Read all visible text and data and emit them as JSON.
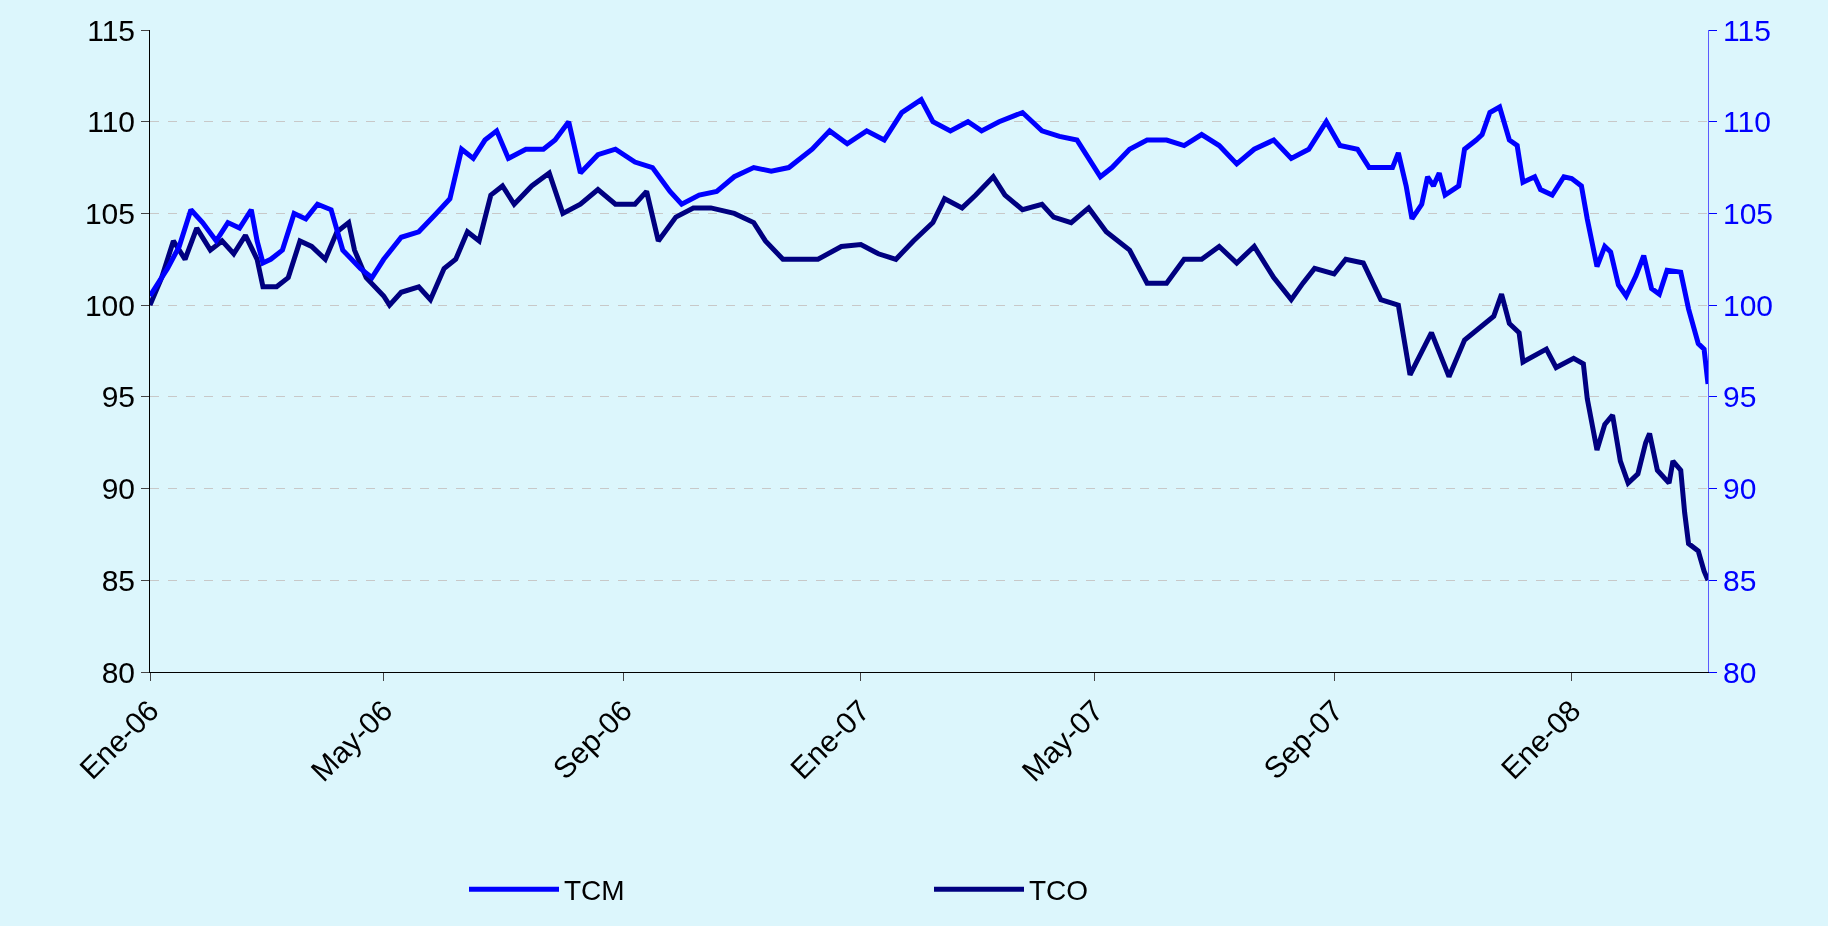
{
  "chart_data": {
    "type": "line",
    "series": [
      {
        "name": "TCM",
        "color": "#0000ff",
        "axis": "y2",
        "x": [
          "2006-01-01",
          "2006-01-10",
          "2006-01-16",
          "2006-01-22",
          "2006-01-28",
          "2006-02-04",
          "2006-02-10",
          "2006-02-16",
          "2006-02-22",
          "2006-02-25",
          "2006-02-28",
          "2006-03-04",
          "2006-03-10",
          "2006-03-16",
          "2006-03-22",
          "2006-03-28",
          "2006-04-04",
          "2006-04-10",
          "2006-04-19",
          "2006-04-25",
          "2006-05-01",
          "2006-05-10",
          "2006-05-19",
          "2006-05-28",
          "2006-06-04",
          "2006-06-10",
          "2006-06-16",
          "2006-06-22",
          "2006-06-28",
          "2006-07-04",
          "2006-07-13",
          "2006-07-22",
          "2006-07-28",
          "2006-08-04",
          "2006-08-10",
          "2006-08-19",
          "2006-08-28",
          "2006-09-07",
          "2006-09-16",
          "2006-09-25",
          "2006-10-01",
          "2006-10-10",
          "2006-10-19",
          "2006-10-28",
          "2006-11-07",
          "2006-11-16",
          "2006-11-25",
          "2006-12-07",
          "2006-12-16",
          "2006-12-25",
          "2007-01-04",
          "2007-01-13",
          "2007-01-22",
          "2007-02-01",
          "2007-02-07",
          "2007-02-16",
          "2007-02-25",
          "2007-03-04",
          "2007-03-13",
          "2007-03-25",
          "2007-04-04",
          "2007-04-13",
          "2007-04-22",
          "2007-05-04",
          "2007-05-10",
          "2007-05-19",
          "2007-05-28",
          "2007-06-07",
          "2007-06-16",
          "2007-06-25",
          "2007-07-04",
          "2007-07-13",
          "2007-07-22",
          "2007-08-01",
          "2007-08-10",
          "2007-08-19",
          "2007-08-28",
          "2007-09-04",
          "2007-09-13",
          "2007-09-19",
          "2007-10-01",
          "2007-10-04",
          "2007-10-08",
          "2007-10-11",
          "2007-10-16",
          "2007-10-19",
          "2007-10-22",
          "2007-10-25",
          "2007-10-28",
          "2007-11-04",
          "2007-11-07",
          "2007-11-13",
          "2007-11-16",
          "2007-11-20",
          "2007-11-25",
          "2007-11-30",
          "2007-12-04",
          "2007-12-07",
          "2007-12-13",
          "2007-12-16",
          "2007-12-22",
          "2007-12-28",
          "2008-01-01",
          "2008-01-06",
          "2008-01-09",
          "2008-01-14",
          "2008-01-18",
          "2008-01-21",
          "2008-01-25",
          "2008-01-29",
          "2008-02-03",
          "2008-02-07",
          "2008-02-11",
          "2008-02-15",
          "2008-02-19",
          "2008-02-26",
          "2008-03-01",
          "2008-03-06",
          "2008-03-09",
          "2008-03-11"
        ],
        "values": [
          100.5,
          102,
          103.2,
          105.2,
          104.5,
          103.5,
          104.5,
          104.2,
          105.2,
          103.5,
          102.3,
          102.5,
          103,
          105,
          104.7,
          105.5,
          105.2,
          103,
          102,
          101.5,
          102.5,
          103.7,
          104,
          105,
          105.8,
          108.5,
          108,
          109,
          109.5,
          108,
          108.5,
          108.5,
          109,
          110,
          107.2,
          108.2,
          108.5,
          107.8,
          107.5,
          106.2,
          105.5,
          106,
          106.2,
          107,
          107.5,
          107.3,
          107.5,
          108.5,
          109.5,
          108.8,
          109.5,
          109,
          110.5,
          111.2,
          110,
          109.5,
          110,
          109.5,
          110,
          110.5,
          109.5,
          109.2,
          109,
          107,
          107.5,
          108.5,
          109,
          109,
          108.7,
          109.3,
          108.7,
          107.7,
          108.5,
          109,
          108,
          108.5,
          110,
          108.7,
          108.5,
          107.5,
          107.5,
          108.3,
          106.5,
          104.7,
          105.5,
          107,
          106.5,
          107.2,
          106,
          106.5,
          108.5,
          109,
          109.3,
          110.5,
          110.8,
          109,
          108.7,
          106.7,
          107,
          106.3,
          106,
          107,
          106.9,
          106.5,
          104.7,
          102.1,
          103.2,
          102.9,
          101.1,
          100.5,
          101.6,
          102.7,
          100.9,
          100.6,
          101.9,
          101.8,
          99.8,
          97.9,
          97.6,
          95.7
        ]
      },
      {
        "name": "TCO",
        "color": "#000080",
        "x": [
          "2006-01-01",
          "2006-01-07",
          "2006-01-13",
          "2006-01-19",
          "2006-01-25",
          "2006-02-01",
          "2006-02-07",
          "2006-02-13",
          "2006-02-19",
          "2006-02-25",
          "2006-02-28",
          "2006-03-07",
          "2006-03-13",
          "2006-03-19",
          "2006-03-25",
          "2006-04-01",
          "2006-04-07",
          "2006-04-13",
          "2006-04-16",
          "2006-04-22",
          "2006-05-01",
          "2006-05-04",
          "2006-05-10",
          "2006-05-19",
          "2006-05-25",
          "2006-06-01",
          "2006-06-07",
          "2006-06-13",
          "2006-06-19",
          "2006-06-25",
          "2006-07-01",
          "2006-07-07",
          "2006-07-16",
          "2006-07-25",
          "2006-08-01",
          "2006-08-10",
          "2006-08-19",
          "2006-08-28",
          "2006-09-07",
          "2006-09-13",
          "2006-09-19",
          "2006-09-28",
          "2006-10-07",
          "2006-10-16",
          "2006-10-28",
          "2006-11-07",
          "2006-11-13",
          "2006-11-22",
          "2006-12-01",
          "2006-12-10",
          "2006-12-22",
          "2007-01-01",
          "2007-01-10",
          "2007-01-19",
          "2007-01-28",
          "2007-02-07",
          "2007-02-13",
          "2007-02-22",
          "2007-03-01",
          "2007-03-10",
          "2007-03-16",
          "2007-03-25",
          "2007-04-04",
          "2007-04-10",
          "2007-04-19",
          "2007-04-28",
          "2007-05-07",
          "2007-05-19",
          "2007-05-28",
          "2007-06-07",
          "2007-06-16",
          "2007-06-25",
          "2007-07-04",
          "2007-07-13",
          "2007-07-22",
          "2007-08-01",
          "2007-08-10",
          "2007-08-16",
          "2007-08-22",
          "2007-09-01",
          "2007-09-07",
          "2007-09-16",
          "2007-09-25",
          "2007-10-04",
          "2007-10-10",
          "2007-10-21",
          "2007-10-30",
          "2007-11-07",
          "2007-11-22",
          "2007-11-26",
          "2007-11-30",
          "2007-12-05",
          "2007-12-07",
          "2007-12-19",
          "2007-12-24",
          "2008-01-02",
          "2008-01-07",
          "2008-01-09",
          "2008-01-14",
          "2008-01-18",
          "2008-01-22",
          "2008-01-26",
          "2008-01-30",
          "2008-02-04",
          "2008-02-08",
          "2008-02-10",
          "2008-02-14",
          "2008-02-20",
          "2008-02-22",
          "2008-02-26",
          "2008-02-28",
          "2008-03-01",
          "2008-03-06",
          "2008-03-09",
          "2008-03-11"
        ],
        "values": [
          100,
          101.5,
          103.5,
          102.5,
          104.2,
          103,
          103.5,
          102.8,
          103.8,
          102.5,
          101,
          101,
          101.5,
          103.5,
          103.2,
          102.5,
          104,
          104.5,
          103,
          101.5,
          100.5,
          100,
          100.7,
          101,
          100.3,
          102,
          102.5,
          104,
          103.5,
          106,
          106.5,
          105.5,
          106.5,
          107.2,
          105,
          105.5,
          106.3,
          105.5,
          105.5,
          106.2,
          103.5,
          104.8,
          105.3,
          105.3,
          105,
          104.5,
          103.5,
          102.5,
          102.5,
          102.5,
          103.2,
          103.3,
          102.8,
          102.5,
          103.5,
          104.5,
          105.8,
          105.3,
          106,
          107,
          106,
          105.2,
          105.5,
          104.8,
          104.5,
          105.3,
          104,
          103,
          101.2,
          101.2,
          102.5,
          102.5,
          103.2,
          102.3,
          103.2,
          101.5,
          100.3,
          101.2,
          102,
          101.7,
          102.5,
          102.3,
          100.3,
          100,
          96.2,
          98.5,
          96.1,
          98.1,
          99.4,
          100.6,
          99,
          98.5,
          96.9,
          97.6,
          96.6,
          97.1,
          96.8,
          94.9,
          92.1,
          93.5,
          94,
          91.5,
          90.3,
          90.8,
          92.5,
          93,
          91,
          90.3,
          91.5,
          91,
          88.7,
          87,
          86.6,
          85.5,
          85
        ]
      }
    ],
    "xlim": [
      "2006-01-01",
      "2008-03-11"
    ],
    "xticks": [
      {
        "value": "2006-01-01",
        "label": "Ene-06"
      },
      {
        "value": "2006-05-01",
        "label": "May-06"
      },
      {
        "value": "2006-09-01",
        "label": "Sep-06"
      },
      {
        "value": "2007-01-01",
        "label": "Ene-07"
      },
      {
        "value": "2007-05-01",
        "label": "May-07"
      },
      {
        "value": "2007-09-01",
        "label": "Sep-07"
      },
      {
        "value": "2008-01-01",
        "label": "Ene-08"
      }
    ],
    "ylim": [
      80,
      115
    ],
    "yticks": [
      80,
      85,
      90,
      95,
      100,
      105,
      110,
      115
    ],
    "y2lim": [
      80,
      115
    ],
    "y2ticks": [
      80,
      85,
      90,
      95,
      100,
      105,
      110,
      115
    ],
    "grid": "y",
    "legend": "bottom",
    "line_style": "solid",
    "marker": "none"
  }
}
